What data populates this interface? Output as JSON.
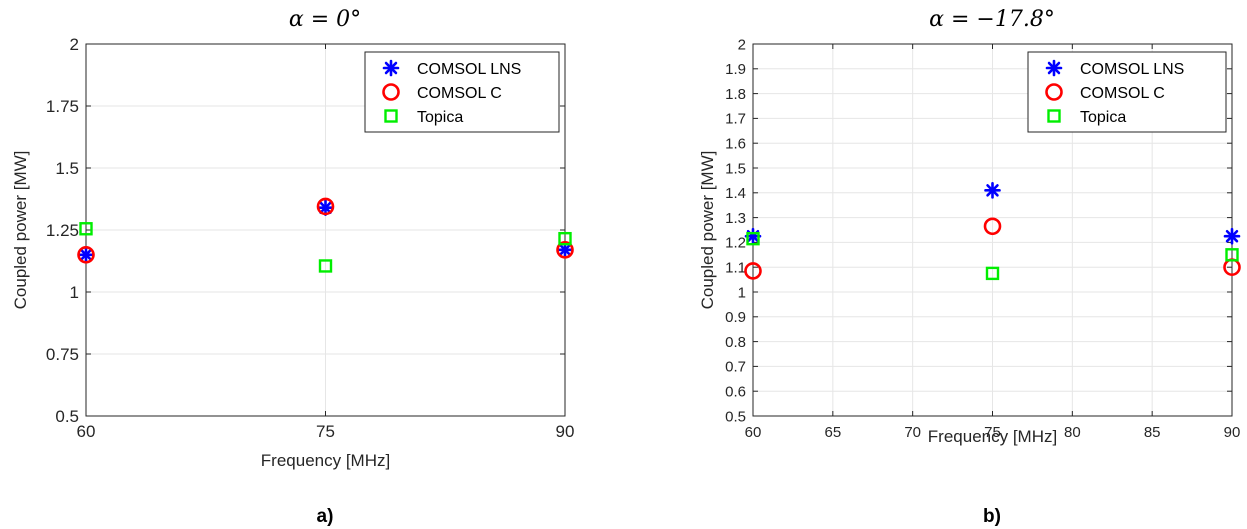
{
  "chart_data": [
    {
      "type": "scatter",
      "title": "α = 0°",
      "panel_label": "a)",
      "xlabel": "Frequency [MHz]",
      "ylabel": "Coupled power [MW]",
      "xlim": [
        60,
        90
      ],
      "ylim": [
        0.5,
        2
      ],
      "xticks": [
        60,
        75,
        90
      ],
      "yticks": [
        0.5,
        0.75,
        1,
        1.25,
        1.5,
        1.75,
        2
      ],
      "ytick_labels": [
        "0.5",
        "0.75",
        "1",
        "1.25",
        "1.5",
        "1.75",
        "2"
      ],
      "grid": true,
      "legend_position": "top-right",
      "series": [
        {
          "name": "COMSOL LNS",
          "marker": "asterisk",
          "color": "#0000ff",
          "x": [
            60,
            75,
            90
          ],
          "y": [
            1.15,
            1.34,
            1.17
          ]
        },
        {
          "name": "COMSOL C",
          "marker": "circle",
          "color": "#ff0000",
          "x": [
            60,
            75,
            90
          ],
          "y": [
            1.15,
            1.345,
            1.17
          ]
        },
        {
          "name": "Topica",
          "marker": "square",
          "color": "#00ee00",
          "x": [
            60,
            75,
            90
          ],
          "y": [
            1.255,
            1.105,
            1.215
          ]
        }
      ]
    },
    {
      "type": "scatter",
      "title": "α = −17.8°",
      "panel_label": "b)",
      "xlabel": "Frequency [MHz]",
      "ylabel": "Coupled power [MW]",
      "xlim": [
        60,
        90
      ],
      "ylim": [
        0.5,
        2
      ],
      "xticks": [
        60,
        65,
        70,
        75,
        80,
        85,
        90
      ],
      "yticks": [
        0.5,
        0.6,
        0.7,
        0.8,
        0.9,
        1.0,
        1.1,
        1.2,
        1.3,
        1.4,
        1.5,
        1.6,
        1.7,
        1.8,
        1.9,
        2.0
      ],
      "ytick_labels": [
        "0.5",
        "0.6",
        "0.7",
        "0.8",
        "0.9",
        "1",
        "1.1",
        "1.2",
        "1.3",
        "1.4",
        "1.5",
        "1.6",
        "1.7",
        "1.8",
        "1.9",
        "2"
      ],
      "grid": true,
      "legend_position": "top-right",
      "series": [
        {
          "name": "COMSOL LNS",
          "marker": "asterisk",
          "color": "#0000ff",
          "x": [
            60,
            75,
            90
          ],
          "y": [
            1.225,
            1.41,
            1.225
          ]
        },
        {
          "name": "COMSOL C",
          "marker": "circle",
          "color": "#ff0000",
          "x": [
            60,
            75,
            90
          ],
          "y": [
            1.085,
            1.265,
            1.1
          ]
        },
        {
          "name": "Topica",
          "marker": "square",
          "color": "#00ee00",
          "x": [
            60,
            75,
            90
          ],
          "y": [
            1.215,
            1.075,
            1.15
          ]
        }
      ]
    }
  ]
}
